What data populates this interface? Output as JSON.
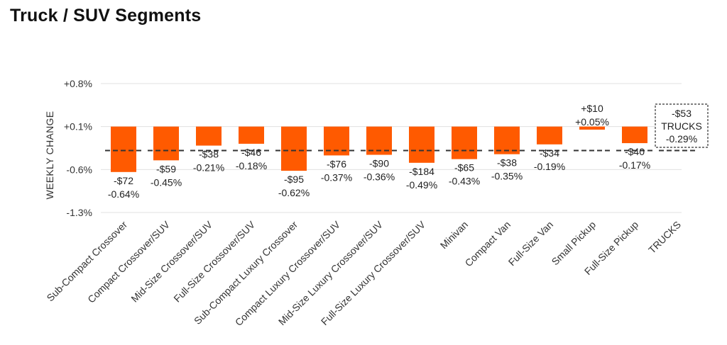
{
  "page": {
    "title": "Truck / SUV Segments"
  },
  "colors": {
    "bar": "#ff5a00",
    "grid": "#e0e0e0",
    "avg_line": "#333333"
  },
  "chart_data": {
    "type": "bar",
    "title": "",
    "xlabel": "",
    "ylabel": "WEEKLY CHANGE",
    "ylim": [
      -1.3,
      0.8
    ],
    "y_ticks": [
      0.8,
      0.1,
      -0.6,
      -1.3
    ],
    "y_tick_labels": [
      "+0.8%",
      "+0.1%",
      "-0.6%",
      "-1.3%"
    ],
    "baseline": 0.1,
    "grid": true,
    "categories": [
      "Sub-Compact Crossover",
      "Compact Crossover/SUV",
      "Mid-Size Crossover/SUV",
      "Full-Size Crossover/SUV",
      "Sub-Compact Luxury Crossover",
      "Compact Luxury Crossover/SUV",
      "Mid-Size Luxury Crossover/SUV",
      "Full-Size Luxury Crossover/SUV",
      "Minivan",
      "Compact Van",
      "Full-Size Van",
      "Small Pickup",
      "Full-Size Pickup",
      "TRUCKS"
    ],
    "values": [
      -0.64,
      -0.45,
      -0.21,
      -0.18,
      -0.62,
      -0.37,
      -0.36,
      -0.49,
      -0.43,
      -0.35,
      -0.19,
      0.05,
      -0.17,
      null
    ],
    "dollar_labels": [
      "-$72",
      "-$59",
      "-$38",
      "-$46",
      "-$95",
      "-$76",
      "-$90",
      "-$184",
      "-$65",
      "-$38",
      "-$34",
      "+$10",
      "-$40",
      ""
    ],
    "pct_labels": [
      "-0.64%",
      "-0.45%",
      "-0.21%",
      "-0.18%",
      "-0.62%",
      "-0.37%",
      "-0.36%",
      "-0.49%",
      "-0.43%",
      "-0.35%",
      "-0.19%",
      "+0.05%",
      "-0.17%",
      ""
    ],
    "average": {
      "value": -0.29,
      "dollar_label": "-$53",
      "name": "TRUCKS",
      "pct_label": "-0.29%"
    }
  }
}
